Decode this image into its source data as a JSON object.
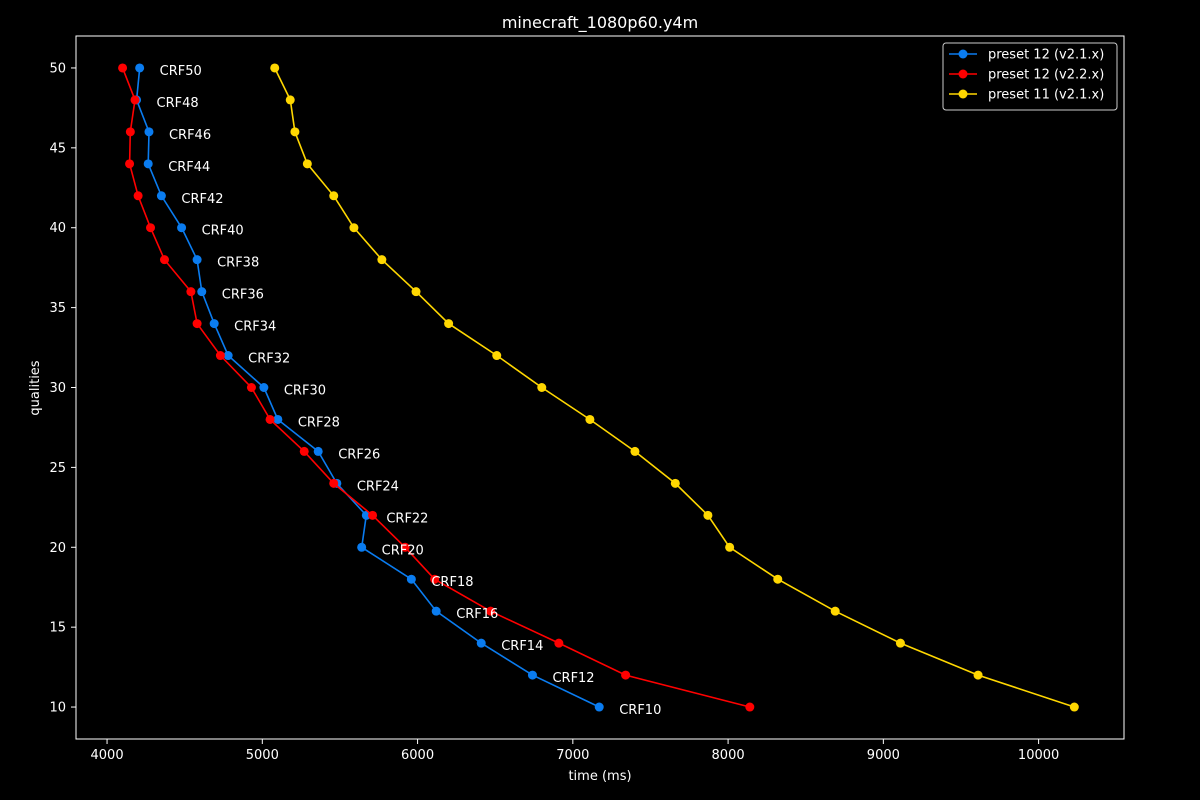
{
  "chart_data": {
    "type": "line",
    "title": "minecraft_1080p60.y4m",
    "xlabel": "time (ms)",
    "ylabel": "qualities",
    "xlim": [
      3800,
      10550
    ],
    "ylim": [
      8,
      52
    ],
    "xticks": [
      4000,
      5000,
      6000,
      7000,
      8000,
      9000,
      10000
    ],
    "yticks": [
      10,
      15,
      20,
      25,
      30,
      35,
      40,
      45,
      50
    ],
    "grid": false,
    "legend_position": "top-right",
    "series": [
      {
        "name": "preset 12 (v2.1.x)",
        "color": "#0a7cf0",
        "qualities": [
          50,
          48,
          46,
          44,
          42,
          40,
          38,
          36,
          34,
          32,
          30,
          28,
          26,
          24,
          22,
          20,
          18,
          16,
          14,
          12,
          10
        ],
        "times": [
          4210,
          4190,
          4270,
          4265,
          4350,
          4480,
          4580,
          4610,
          4690,
          4780,
          5010,
          5100,
          5360,
          5480,
          5670,
          5640,
          5960,
          6120,
          6410,
          6740,
          7170
        ],
        "labels": [
          "CRF50",
          "CRF48",
          "CRF46",
          "CRF44",
          "CRF42",
          "CRF40",
          "CRF38",
          "CRF36",
          "CRF34",
          "CRF32",
          "CRF30",
          "CRF28",
          "CRF26",
          "CRF24",
          "CRF22",
          "CRF20",
          "CRF18",
          "CRF16",
          "CRF14",
          "CRF12",
          "CRF10"
        ]
      },
      {
        "name": "preset 12 (v2.2.x)",
        "color": "#ff0000",
        "qualities": [
          50,
          48,
          46,
          44,
          42,
          40,
          38,
          36,
          34,
          32,
          30,
          28,
          26,
          24,
          22,
          20,
          18,
          16,
          14,
          12,
          10
        ],
        "times": [
          4100,
          4180,
          4150,
          4145,
          4200,
          4280,
          4370,
          4540,
          4580,
          4730,
          4930,
          5050,
          5270,
          5460,
          5710,
          5920,
          6110,
          6470,
          6910,
          7340,
          8140
        ]
      },
      {
        "name": "preset 11 (v2.1.x)",
        "color": "#ffd700",
        "qualities": [
          50,
          48,
          46,
          44,
          42,
          40,
          38,
          36,
          34,
          32,
          30,
          28,
          26,
          24,
          22,
          20,
          18,
          16,
          14,
          12,
          10
        ],
        "times": [
          5080,
          5180,
          5210,
          5290,
          5460,
          5590,
          5770,
          5990,
          6200,
          6510,
          6800,
          7110,
          7400,
          7660,
          7870,
          8010,
          8320,
          8690,
          9110,
          9610,
          10230
        ]
      }
    ]
  }
}
